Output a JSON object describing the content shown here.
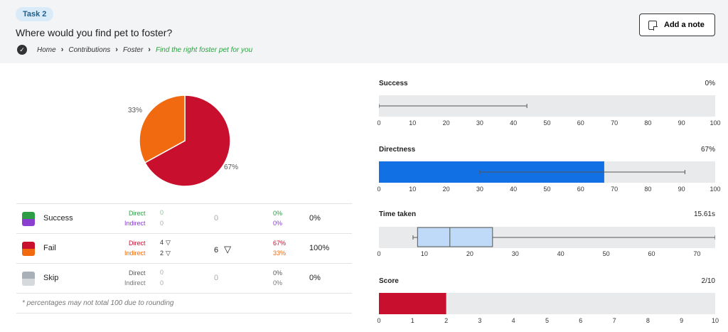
{
  "task": {
    "badge": "Task 2",
    "question": "Where would you find pet to foster?"
  },
  "breadcrumb": [
    "Home",
    "Contributions",
    "Foster",
    "Find the right foster pet for you"
  ],
  "add_note_label": "Add a note",
  "colors": {
    "success": "#2e9e46",
    "success_indirect": "#8a3fd1",
    "fail": "#c8102e",
    "fail_indirect": "#f26a0f",
    "skip": "#aab0b7",
    "skip_indirect": "#d6d9dc",
    "blue": "#1170e4",
    "light_blue": "#bfd9f8"
  },
  "pie": {
    "labels": {
      "fail_indirect": "33%",
      "fail_direct": "67%"
    }
  },
  "pie_values": {
    "fail_direct": 67,
    "fail_indirect": 33
  },
  "table": {
    "rows": [
      {
        "label": "Success",
        "direct_label": "Direct",
        "indirect_label": "Indirect",
        "direct_count": "0",
        "indirect_count": "0",
        "total": "0",
        "direct_pct": "0%",
        "indirect_pct": "0%",
        "overall": "0%"
      },
      {
        "label": "Fail",
        "direct_label": "Direct",
        "indirect_label": "Indirect",
        "direct_count": "4",
        "indirect_count": "2",
        "total": "6",
        "direct_pct": "67%",
        "indirect_pct": "33%",
        "overall": "100%"
      },
      {
        "label": "Skip",
        "direct_label": "Direct",
        "indirect_label": "Indirect",
        "direct_count": "0",
        "indirect_count": "0",
        "total": "0",
        "direct_pct": "0%",
        "indirect_pct": "0%",
        "overall": "0%"
      }
    ],
    "footnote": "* percentages may not total 100 due to rounding"
  },
  "metrics": {
    "success": {
      "title": "Success",
      "value": "0%",
      "fill": 0,
      "whisker": [
        0,
        44
      ],
      "ticks": [
        "0",
        "10",
        "20",
        "30",
        "40",
        "50",
        "60",
        "70",
        "80",
        "90",
        "100"
      ],
      "max": 100
    },
    "directness": {
      "title": "Directness",
      "value": "67%",
      "fill": 67,
      "whisker": [
        30,
        91
      ],
      "ticks": [
        "0",
        "10",
        "20",
        "30",
        "40",
        "50",
        "60",
        "70",
        "80",
        "90",
        "100"
      ],
      "max": 100
    },
    "time": {
      "title": "Time taken",
      "value": "15.61s",
      "box": [
        8.5,
        15.61,
        25
      ],
      "whisker": [
        7.5,
        74
      ],
      "ticks": [
        "0",
        "10",
        "20",
        "30",
        "40",
        "50",
        "60",
        "70"
      ],
      "max": 74
    },
    "score": {
      "title": "Score",
      "value": "2/10",
      "fill": 2,
      "ticks": [
        "0",
        "1",
        "2",
        "3",
        "4",
        "5",
        "6",
        "7",
        "8",
        "9",
        "10"
      ],
      "max": 10
    }
  }
}
